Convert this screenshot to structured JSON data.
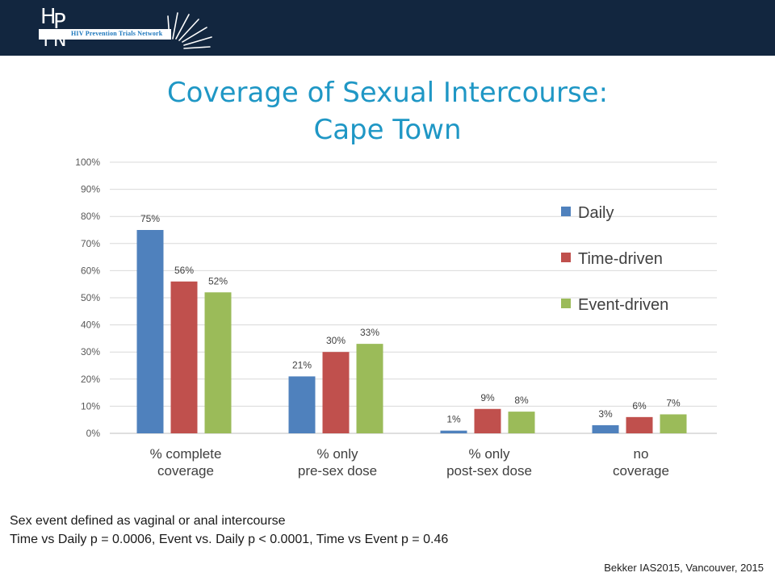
{
  "logo": {
    "letters": [
      "H",
      "P",
      "T",
      "N"
    ],
    "tagline": "HIV Prevention Trials Network"
  },
  "title": {
    "line1": "Coverage of Sexual Intercourse:",
    "line2": "Cape Town"
  },
  "footnote": {
    "line1": "Sex event defined as vaginal or anal intercourse",
    "line2": "Time vs Daily p = 0.0006, Event vs. Daily p < 0.0001, Time vs Event p = 0.46"
  },
  "citation": "Bekker IAS2015, Vancouver, 2015",
  "colors": {
    "header": "#12263f",
    "title": "#1f97c5",
    "daily": "#4f81bd",
    "time_driven": "#c0504d",
    "event_driven": "#9bbb59"
  },
  "chart_data": {
    "type": "bar",
    "categories": [
      [
        "% complete",
        "coverage"
      ],
      [
        "% only",
        "pre-sex dose"
      ],
      [
        "% only",
        "post-sex dose"
      ],
      [
        "no",
        "coverage"
      ]
    ],
    "series": [
      {
        "name": "Daily",
        "values": [
          75,
          21,
          1,
          3
        ],
        "labels": [
          "75%",
          "21%",
          "1%",
          "3%"
        ],
        "color": "#4f81bd"
      },
      {
        "name": "Time-driven",
        "values": [
          56,
          30,
          9,
          6
        ],
        "labels": [
          "56%",
          "30%",
          "9%",
          "6%"
        ],
        "color": "#c0504d"
      },
      {
        "name": "Event-driven",
        "values": [
          52,
          33,
          8,
          7
        ],
        "labels": [
          "52%",
          "33%",
          "8%",
          "7%"
        ],
        "color": "#9bbb59"
      }
    ],
    "ylim": [
      0,
      100
    ],
    "yticks": [
      "0%",
      "10%",
      "20%",
      "30%",
      "40%",
      "50%",
      "60%",
      "70%",
      "80%",
      "90%",
      "100%"
    ],
    "grid": true,
    "legend": "right"
  }
}
